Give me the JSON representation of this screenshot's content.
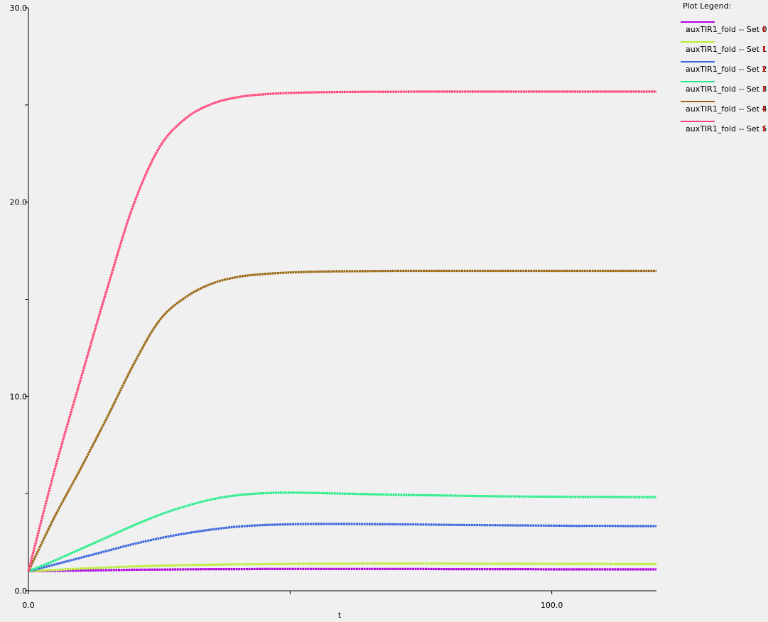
{
  "chart_data": {
    "type": "line",
    "title": "",
    "xlabel": "t",
    "ylabel": "",
    "xlim": [
      0,
      120
    ],
    "ylim": [
      0,
      30
    ],
    "x_ticks": [
      0,
      50,
      100
    ],
    "x_tick_labels": [
      "0.0",
      "",
      "100.0"
    ],
    "y_ticks": [
      0,
      5,
      10,
      15,
      20,
      25,
      30
    ],
    "y_tick_labels": [
      "0.0",
      "",
      "10.0",
      "",
      "20.0",
      "",
      "30.0"
    ],
    "grid": false,
    "legend_title": "Plot Legend:",
    "legend_position": "top-right",
    "x": [
      0,
      5,
      10,
      15,
      20,
      25,
      30,
      35,
      40,
      45,
      50,
      55,
      60,
      65,
      70,
      75,
      80,
      85,
      90,
      95,
      100,
      105,
      110,
      115,
      120
    ],
    "series": [
      {
        "name": "auxTIR1_fold -- Set 0",
        "color": "#b000e0",
        "values": [
          1.0,
          1.02,
          1.04,
          1.06,
          1.08,
          1.09,
          1.1,
          1.11,
          1.11,
          1.12,
          1.12,
          1.12,
          1.12,
          1.12,
          1.12,
          1.12,
          1.11,
          1.11,
          1.11,
          1.11,
          1.1,
          1.1,
          1.1,
          1.1,
          1.1
        ]
      },
      {
        "name": "auxTIR1_fold -- Set 1",
        "color": "#bbee33",
        "values": [
          1.0,
          1.07,
          1.14,
          1.2,
          1.25,
          1.29,
          1.32,
          1.34,
          1.36,
          1.37,
          1.38,
          1.39,
          1.39,
          1.4,
          1.4,
          1.4,
          1.4,
          1.39,
          1.39,
          1.39,
          1.38,
          1.38,
          1.38,
          1.37,
          1.37
        ]
      },
      {
        "name": "auxTIR1_fold -- Set 2",
        "color": "#3a66dd",
        "values": [
          1.0,
          1.35,
          1.7,
          2.05,
          2.4,
          2.7,
          2.95,
          3.15,
          3.3,
          3.38,
          3.42,
          3.44,
          3.44,
          3.43,
          3.42,
          3.41,
          3.39,
          3.38,
          3.37,
          3.36,
          3.35,
          3.34,
          3.34,
          3.33,
          3.33
        ]
      },
      {
        "name": "auxTIR1_fold -- Set 3",
        "color": "#22ee88",
        "values": [
          1.0,
          1.55,
          2.15,
          2.75,
          3.35,
          3.9,
          4.35,
          4.7,
          4.92,
          5.02,
          5.05,
          5.03,
          5.0,
          4.97,
          4.94,
          4.92,
          4.9,
          4.88,
          4.86,
          4.85,
          4.84,
          4.83,
          4.83,
          4.82,
          4.82
        ]
      },
      {
        "name": "auxTIR1_fold -- Set 4",
        "color": "#996611",
        "values": [
          1.0,
          3.8,
          6.3,
          8.9,
          11.6,
          13.9,
          15.1,
          15.8,
          16.15,
          16.3,
          16.38,
          16.42,
          16.44,
          16.45,
          16.46,
          16.46,
          16.46,
          16.46,
          16.46,
          16.46,
          16.46,
          16.46,
          16.46,
          16.46,
          16.46
        ]
      },
      {
        "name": "auxTIR1_fold -- Set 5",
        "color": "#ff4477",
        "values": [
          1.0,
          6.2,
          10.9,
          15.5,
          19.8,
          22.8,
          24.3,
          25.05,
          25.4,
          25.55,
          25.62,
          25.65,
          25.67,
          25.68,
          25.68,
          25.69,
          25.69,
          25.69,
          25.69,
          25.69,
          25.69,
          25.69,
          25.69,
          25.69,
          25.69
        ]
      }
    ]
  }
}
